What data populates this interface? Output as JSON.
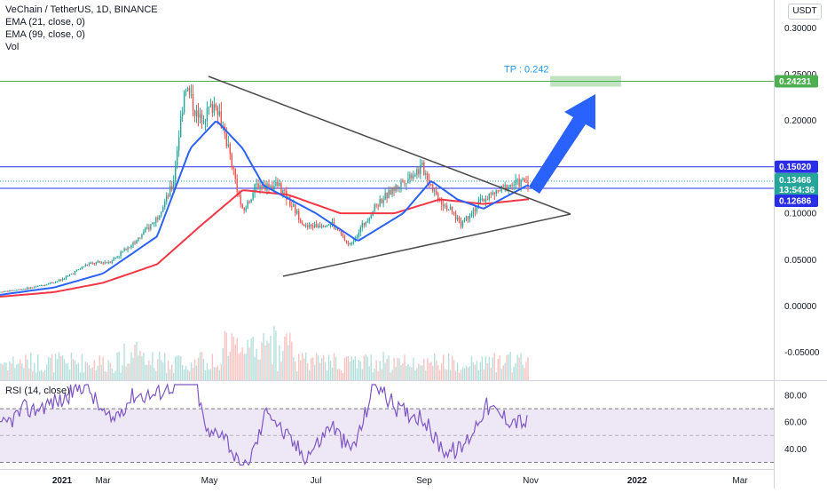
{
  "header": {
    "title": "VeChain / TetherUS, 1D, BINANCE",
    "indicators": [
      "EMA (21, close, 0)",
      "EMA (99, close, 0)",
      "Vol"
    ],
    "rsi_label": "RSI (14, close)",
    "currency": "USDT"
  },
  "colors": {
    "up": "#26a69a",
    "down": "#ef5350",
    "ema21": "#2962ff",
    "ema99": "#f23645",
    "level": "#2a2ee6",
    "tp": "#4caf50",
    "arrow": "#2962ff",
    "rsi": "#7e57c2",
    "rsi_band": "#ede7f6",
    "triangle": "#4a4a4a"
  },
  "price_labels": {
    "tp_text": "TP : 0.242",
    "tp_tag": "0.24231",
    "resistance_tag": "0.15020",
    "price_tag": "0.13466",
    "countdown": "13:54:36",
    "support_tag": "0.12686"
  },
  "chart_data": [
    {
      "type": "candlestick",
      "title": "VeChain / TetherUS, 1D, BINANCE",
      "y_ticks": [
        "0.30000",
        "0.25000",
        "0.20000",
        "0.15000",
        "0.10000",
        "0.05000",
        "0.00000",
        "-0.05000"
      ],
      "x_ticks": [
        "2021",
        "Mar",
        "May",
        "Jul",
        "Sep",
        "Nov",
        "2022",
        "Mar"
      ],
      "ylim": [
        -0.08,
        0.33
      ],
      "levels": [
        {
          "name": "resistance",
          "value": 0.1502
        },
        {
          "name": "support",
          "value": 0.12686
        },
        {
          "name": "take-profit",
          "value": 0.24231
        },
        {
          "name": "last-price",
          "value": 0.13466
        }
      ],
      "close_path": [
        [
          "2021-01-01",
          0.015
        ],
        [
          "2021-01-20",
          0.02
        ],
        [
          "2021-02-05",
          0.028
        ],
        [
          "2021-02-20",
          0.045
        ],
        [
          "2021-03-05",
          0.048
        ],
        [
          "2021-03-20",
          0.07
        ],
        [
          "2021-04-01",
          0.095
        ],
        [
          "2021-04-10",
          0.13
        ],
        [
          "2021-04-17",
          0.24
        ],
        [
          "2021-04-25",
          0.2
        ],
        [
          "2021-05-05",
          0.22
        ],
        [
          "2021-05-12",
          0.17
        ],
        [
          "2021-05-20",
          0.1
        ],
        [
          "2021-05-28",
          0.13
        ],
        [
          "2021-06-10",
          0.13
        ],
        [
          "2021-06-25",
          0.085
        ],
        [
          "2021-07-10",
          0.09
        ],
        [
          "2021-07-20",
          0.065
        ],
        [
          "2021-08-05",
          0.11
        ],
        [
          "2021-08-20",
          0.135
        ],
        [
          "2021-08-31",
          0.15
        ],
        [
          "2021-09-08",
          0.12
        ],
        [
          "2021-09-22",
          0.09
        ],
        [
          "2021-10-05",
          0.115
        ],
        [
          "2021-10-20",
          0.13
        ],
        [
          "2021-10-30",
          0.135
        ]
      ],
      "ema21": [
        [
          "2021-01-01",
          0.012
        ],
        [
          "2021-02-01",
          0.02
        ],
        [
          "2021-03-01",
          0.035
        ],
        [
          "2021-04-01",
          0.075
        ],
        [
          "2021-04-20",
          0.17
        ],
        [
          "2021-05-05",
          0.2
        ],
        [
          "2021-05-20",
          0.17
        ],
        [
          "2021-06-01",
          0.13
        ],
        [
          "2021-07-01",
          0.1
        ],
        [
          "2021-07-25",
          0.07
        ],
        [
          "2021-08-20",
          0.1
        ],
        [
          "2021-09-05",
          0.135
        ],
        [
          "2021-09-20",
          0.115
        ],
        [
          "2021-10-05",
          0.105
        ],
        [
          "2021-10-20",
          0.12
        ],
        [
          "2021-10-30",
          0.13
        ]
      ],
      "ema99": [
        [
          "2021-01-01",
          0.01
        ],
        [
          "2021-02-01",
          0.015
        ],
        [
          "2021-03-01",
          0.025
        ],
        [
          "2021-04-01",
          0.045
        ],
        [
          "2021-04-25",
          0.085
        ],
        [
          "2021-05-20",
          0.125
        ],
        [
          "2021-06-15",
          0.12
        ],
        [
          "2021-07-15",
          0.1
        ],
        [
          "2021-08-15",
          0.1
        ],
        [
          "2021-09-10",
          0.115
        ],
        [
          "2021-10-05",
          0.11
        ],
        [
          "2021-10-30",
          0.115
        ]
      ]
    },
    {
      "type": "bar",
      "series_label": "Vol",
      "note": "volume histogram beneath price"
    },
    {
      "type": "line",
      "title": "RSI (14, close)",
      "y_ticks": [
        "80.00",
        "60.00",
        "40.00"
      ],
      "ylim": [
        25,
        90
      ],
      "band": [
        30,
        70
      ],
      "midline": 50
    }
  ]
}
